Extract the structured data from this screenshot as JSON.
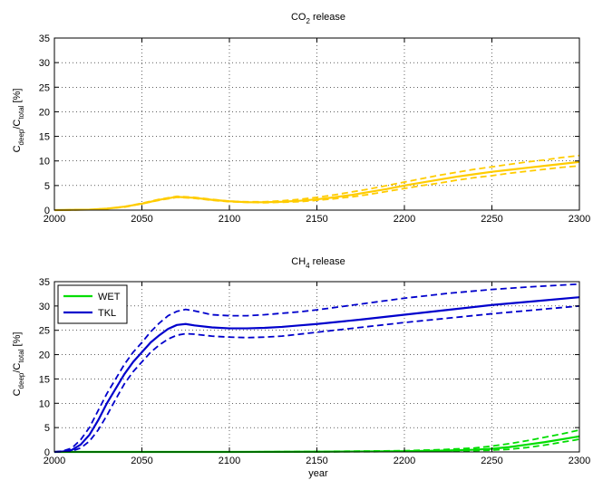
{
  "chart_data": [
    {
      "type": "line",
      "title_main": "CO",
      "title_sub": "2",
      "title_rest": " release",
      "ylabel_main": "C",
      "ylabel_sub1": "deep",
      "ylabel_mid": "/C",
      "ylabel_sub2": "total",
      "ylabel_rest": " [%]",
      "xlabel": "",
      "xlim": [
        2000,
        2300
      ],
      "ylim": [
        0,
        35
      ],
      "xticks": [
        2000,
        2050,
        2100,
        2150,
        2200,
        2250,
        2300
      ],
      "yticks": [
        0,
        5,
        10,
        15,
        20,
        25,
        30,
        35
      ],
      "grid": true,
      "legend": null,
      "series": [
        {
          "color": "#FFCC00",
          "style": "solid",
          "x": [
            2000,
            2020,
            2030,
            2040,
            2050,
            2060,
            2070,
            2080,
            2090,
            2100,
            2110,
            2120,
            2130,
            2140,
            2150,
            2160,
            2170,
            2180,
            2190,
            2200,
            2210,
            2220,
            2230,
            2240,
            2250,
            2260,
            2270,
            2280,
            2290,
            2300
          ],
          "y": [
            0,
            0.1,
            0.3,
            0.7,
            1.3,
            2.1,
            2.7,
            2.5,
            2.1,
            1.8,
            1.6,
            1.6,
            1.7,
            1.9,
            2.2,
            2.6,
            3.1,
            3.7,
            4.3,
            5.0,
            5.6,
            6.2,
            6.8,
            7.3,
            7.8,
            8.2,
            8.6,
            9.0,
            9.4,
            9.8
          ]
        },
        {
          "color": "#FFCC00",
          "style": "dashed",
          "x": [
            2000,
            2020,
            2030,
            2040,
            2050,
            2060,
            2070,
            2080,
            2090,
            2100,
            2110,
            2120,
            2130,
            2140,
            2150,
            2160,
            2170,
            2180,
            2190,
            2200,
            2210,
            2220,
            2230,
            2240,
            2250,
            2260,
            2270,
            2280,
            2290,
            2300
          ],
          "y": [
            0,
            0.1,
            0.3,
            0.7,
            1.4,
            2.2,
            2.8,
            2.6,
            2.2,
            1.8,
            1.7,
            1.7,
            1.9,
            2.2,
            2.6,
            3.1,
            3.7,
            4.3,
            5.0,
            5.7,
            6.4,
            7.1,
            7.7,
            8.3,
            8.8,
            9.3,
            9.8,
            10.2,
            10.7,
            11.1
          ]
        },
        {
          "color": "#FFCC00",
          "style": "dashed",
          "x": [
            2000,
            2020,
            2030,
            2040,
            2050,
            2060,
            2070,
            2080,
            2090,
            2100,
            2110,
            2120,
            2130,
            2140,
            2150,
            2160,
            2170,
            2180,
            2190,
            2200,
            2210,
            2220,
            2230,
            2240,
            2250,
            2260,
            2270,
            2280,
            2290,
            2300
          ],
          "y": [
            0,
            0.1,
            0.3,
            0.6,
            1.3,
            2.0,
            2.6,
            2.4,
            2.0,
            1.7,
            1.6,
            1.5,
            1.6,
            1.7,
            2.0,
            2.3,
            2.7,
            3.2,
            3.8,
            4.4,
            5.0,
            5.5,
            6.1,
            6.6,
            7.0,
            7.5,
            7.9,
            8.3,
            8.7,
            9.0
          ]
        }
      ]
    },
    {
      "type": "line",
      "title_main": "CH",
      "title_sub": "4",
      "title_rest": " release",
      "ylabel_main": "C",
      "ylabel_sub1": "deep",
      "ylabel_mid": "/C",
      "ylabel_sub2": "total",
      "ylabel_rest": " [%]",
      "xlabel": "year",
      "xlim": [
        2000,
        2300
      ],
      "ylim": [
        0,
        35
      ],
      "xticks": [
        2000,
        2050,
        2100,
        2150,
        2200,
        2250,
        2300
      ],
      "yticks": [
        0,
        5,
        10,
        15,
        20,
        25,
        30,
        35
      ],
      "grid": true,
      "legend": "top-left",
      "series": [
        {
          "name": "WET",
          "color": "#00DD00",
          "style": "solid",
          "x": [
            2000,
            2100,
            2150,
            2200,
            2220,
            2240,
            2250,
            2260,
            2270,
            2280,
            2290,
            2300
          ],
          "y": [
            0,
            0,
            0.05,
            0.15,
            0.25,
            0.45,
            0.65,
            1.0,
            1.5,
            2.0,
            2.6,
            3.2
          ]
        },
        {
          "color": "#00DD00",
          "style": "dashed",
          "x": [
            2000,
            2100,
            2150,
            2200,
            2220,
            2240,
            2250,
            2260,
            2270,
            2280,
            2290,
            2300
          ],
          "y": [
            0,
            0,
            0.1,
            0.25,
            0.45,
            0.8,
            1.2,
            1.7,
            2.3,
            3.0,
            3.7,
            4.5
          ]
        },
        {
          "color": "#00DD00",
          "style": "dashed",
          "x": [
            2000,
            2100,
            2150,
            2200,
            2220,
            2240,
            2250,
            2260,
            2270,
            2280,
            2290,
            2300
          ],
          "y": [
            0,
            0,
            0.03,
            0.08,
            0.15,
            0.25,
            0.35,
            0.55,
            0.9,
            1.4,
            2.0,
            2.6
          ]
        },
        {
          "name": "TKL",
          "color": "#0000CC",
          "style": "solid",
          "x": [
            2000,
            2005,
            2010,
            2015,
            2020,
            2025,
            2030,
            2035,
            2040,
            2045,
            2050,
            2055,
            2060,
            2065,
            2070,
            2075,
            2080,
            2090,
            2100,
            2110,
            2120,
            2130,
            2140,
            2150,
            2175,
            2200,
            2225,
            2250,
            2275,
            2300
          ],
          "y": [
            0,
            0.1,
            0.4,
            1.5,
            3.5,
            6.5,
            10.0,
            13.0,
            16.0,
            18.5,
            20.5,
            22.5,
            24.0,
            25.3,
            26.1,
            26.3,
            26.0,
            25.6,
            25.4,
            25.4,
            25.5,
            25.7,
            26.0,
            26.3,
            27.2,
            28.2,
            29.2,
            30.2,
            31.0,
            31.8
          ]
        },
        {
          "color": "#0000CC",
          "style": "dashed",
          "x": [
            2000,
            2005,
            2010,
            2015,
            2020,
            2025,
            2030,
            2035,
            2040,
            2045,
            2050,
            2055,
            2060,
            2065,
            2070,
            2075,
            2080,
            2090,
            2100,
            2110,
            2120,
            2130,
            2140,
            2150,
            2175,
            2200,
            2225,
            2250,
            2275,
            2300
          ],
          "y": [
            0,
            0.2,
            0.8,
            2.5,
            5.0,
            8.5,
            12.0,
            15.0,
            18.0,
            20.5,
            22.5,
            24.7,
            26.5,
            28.0,
            28.9,
            29.3,
            29.0,
            28.2,
            28.0,
            28.0,
            28.2,
            28.5,
            28.8,
            29.2,
            30.4,
            31.6,
            32.6,
            33.4,
            34.0,
            34.5
          ]
        },
        {
          "color": "#0000CC",
          "style": "dashed",
          "x": [
            2000,
            2005,
            2010,
            2015,
            2020,
            2025,
            2030,
            2035,
            2040,
            2045,
            2050,
            2055,
            2060,
            2065,
            2070,
            2075,
            2080,
            2090,
            2100,
            2110,
            2120,
            2130,
            2140,
            2150,
            2175,
            2200,
            2225,
            2250,
            2275,
            2300
          ],
          "y": [
            0,
            0.05,
            0.2,
            0.8,
            2.2,
            4.5,
            7.5,
            10.8,
            14.0,
            16.5,
            18.5,
            20.5,
            22.0,
            23.2,
            24.0,
            24.3,
            24.2,
            23.8,
            23.6,
            23.5,
            23.6,
            23.8,
            24.2,
            24.6,
            25.6,
            26.6,
            27.5,
            28.4,
            29.2,
            30.0
          ]
        }
      ]
    }
  ]
}
